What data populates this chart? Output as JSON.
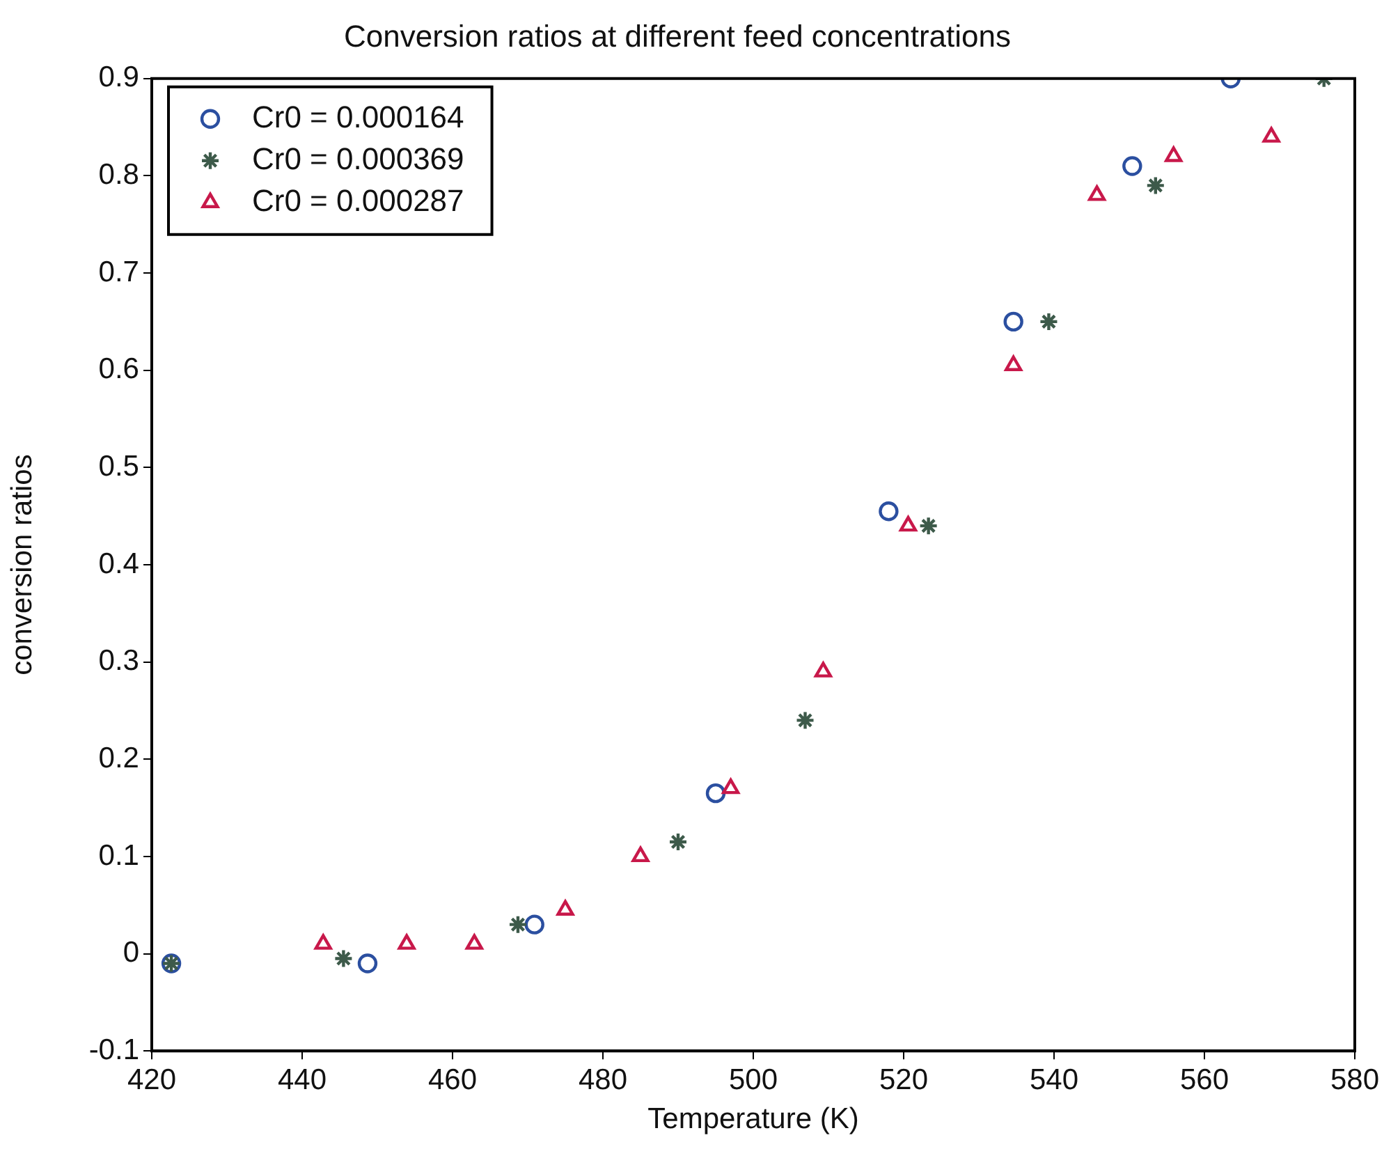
{
  "chart_data": {
    "type": "scatter",
    "title": "Conversion ratios at different feed concentrations",
    "xlabel": "Temperature (K)",
    "ylabel": "conversion ratios",
    "xlim": [
      420,
      580
    ],
    "xticks": [
      420,
      440,
      460,
      480,
      500,
      520,
      540,
      560,
      580
    ],
    "ylim": [
      -0.1,
      0.9
    ],
    "yticks": [
      -0.1,
      0,
      0.1,
      0.2,
      0.3,
      0.4,
      0.5,
      0.6,
      0.7,
      0.8,
      0.9
    ],
    "grid": false,
    "legend": "top left",
    "series": [
      {
        "name": "Cr0 = 0.000164",
        "color": "#2b4fa0",
        "marker": "circle",
        "x": [
          422.6,
          448.7,
          470.9,
          495,
          518,
          534.6,
          550.4,
          563.5
        ],
        "values": [
          -0.01,
          -0.01,
          0.03,
          0.165,
          0.455,
          0.65,
          0.81,
          0.9
        ]
      },
      {
        "name": "Cr0 = 0.000369",
        "color": "#3d5a4a",
        "marker": "cross",
        "x": [
          422.6,
          445.5,
          468.7,
          490,
          506.9,
          523.3,
          539.3,
          553.5,
          575.9
        ],
        "values": [
          -0.01,
          -0.005,
          0.03,
          0.115,
          0.24,
          0.44,
          0.65,
          0.79,
          0.9
        ]
      },
      {
        "name": "Cr0 = 0.000287",
        "color": "#c8184a",
        "marker": "triangle",
        "x": [
          442.8,
          453.9,
          462.9,
          475,
          485,
          497,
          509.3,
          520.6,
          534.6,
          545.7,
          555.9,
          568.9
        ],
        "values": [
          0.01,
          0.01,
          0.01,
          0.045,
          0.1,
          0.17,
          0.29,
          0.44,
          0.605,
          0.78,
          0.82,
          0.84
        ]
      }
    ]
  }
}
